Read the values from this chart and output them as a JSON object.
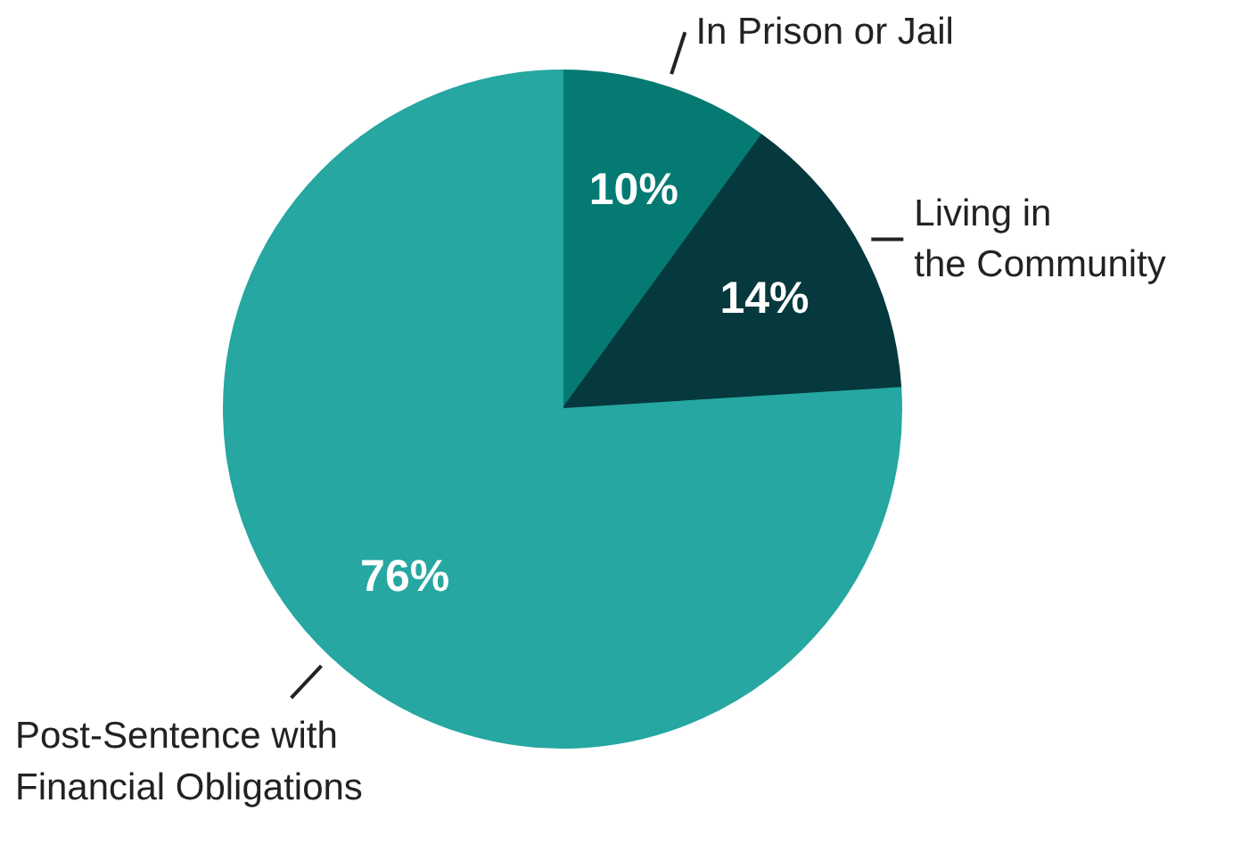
{
  "chart_data": {
    "type": "pie",
    "categories": [
      "In Prison or Jail",
      "Living in\nthe Community",
      "Post-Sentence with\nFinancial Obligations"
    ],
    "values": [
      10,
      14,
      76
    ],
    "colors": [
      "#047a72",
      "#05393e",
      "#26a7a1"
    ],
    "value_labels": [
      "10%",
      "14%",
      "76%"
    ]
  }
}
